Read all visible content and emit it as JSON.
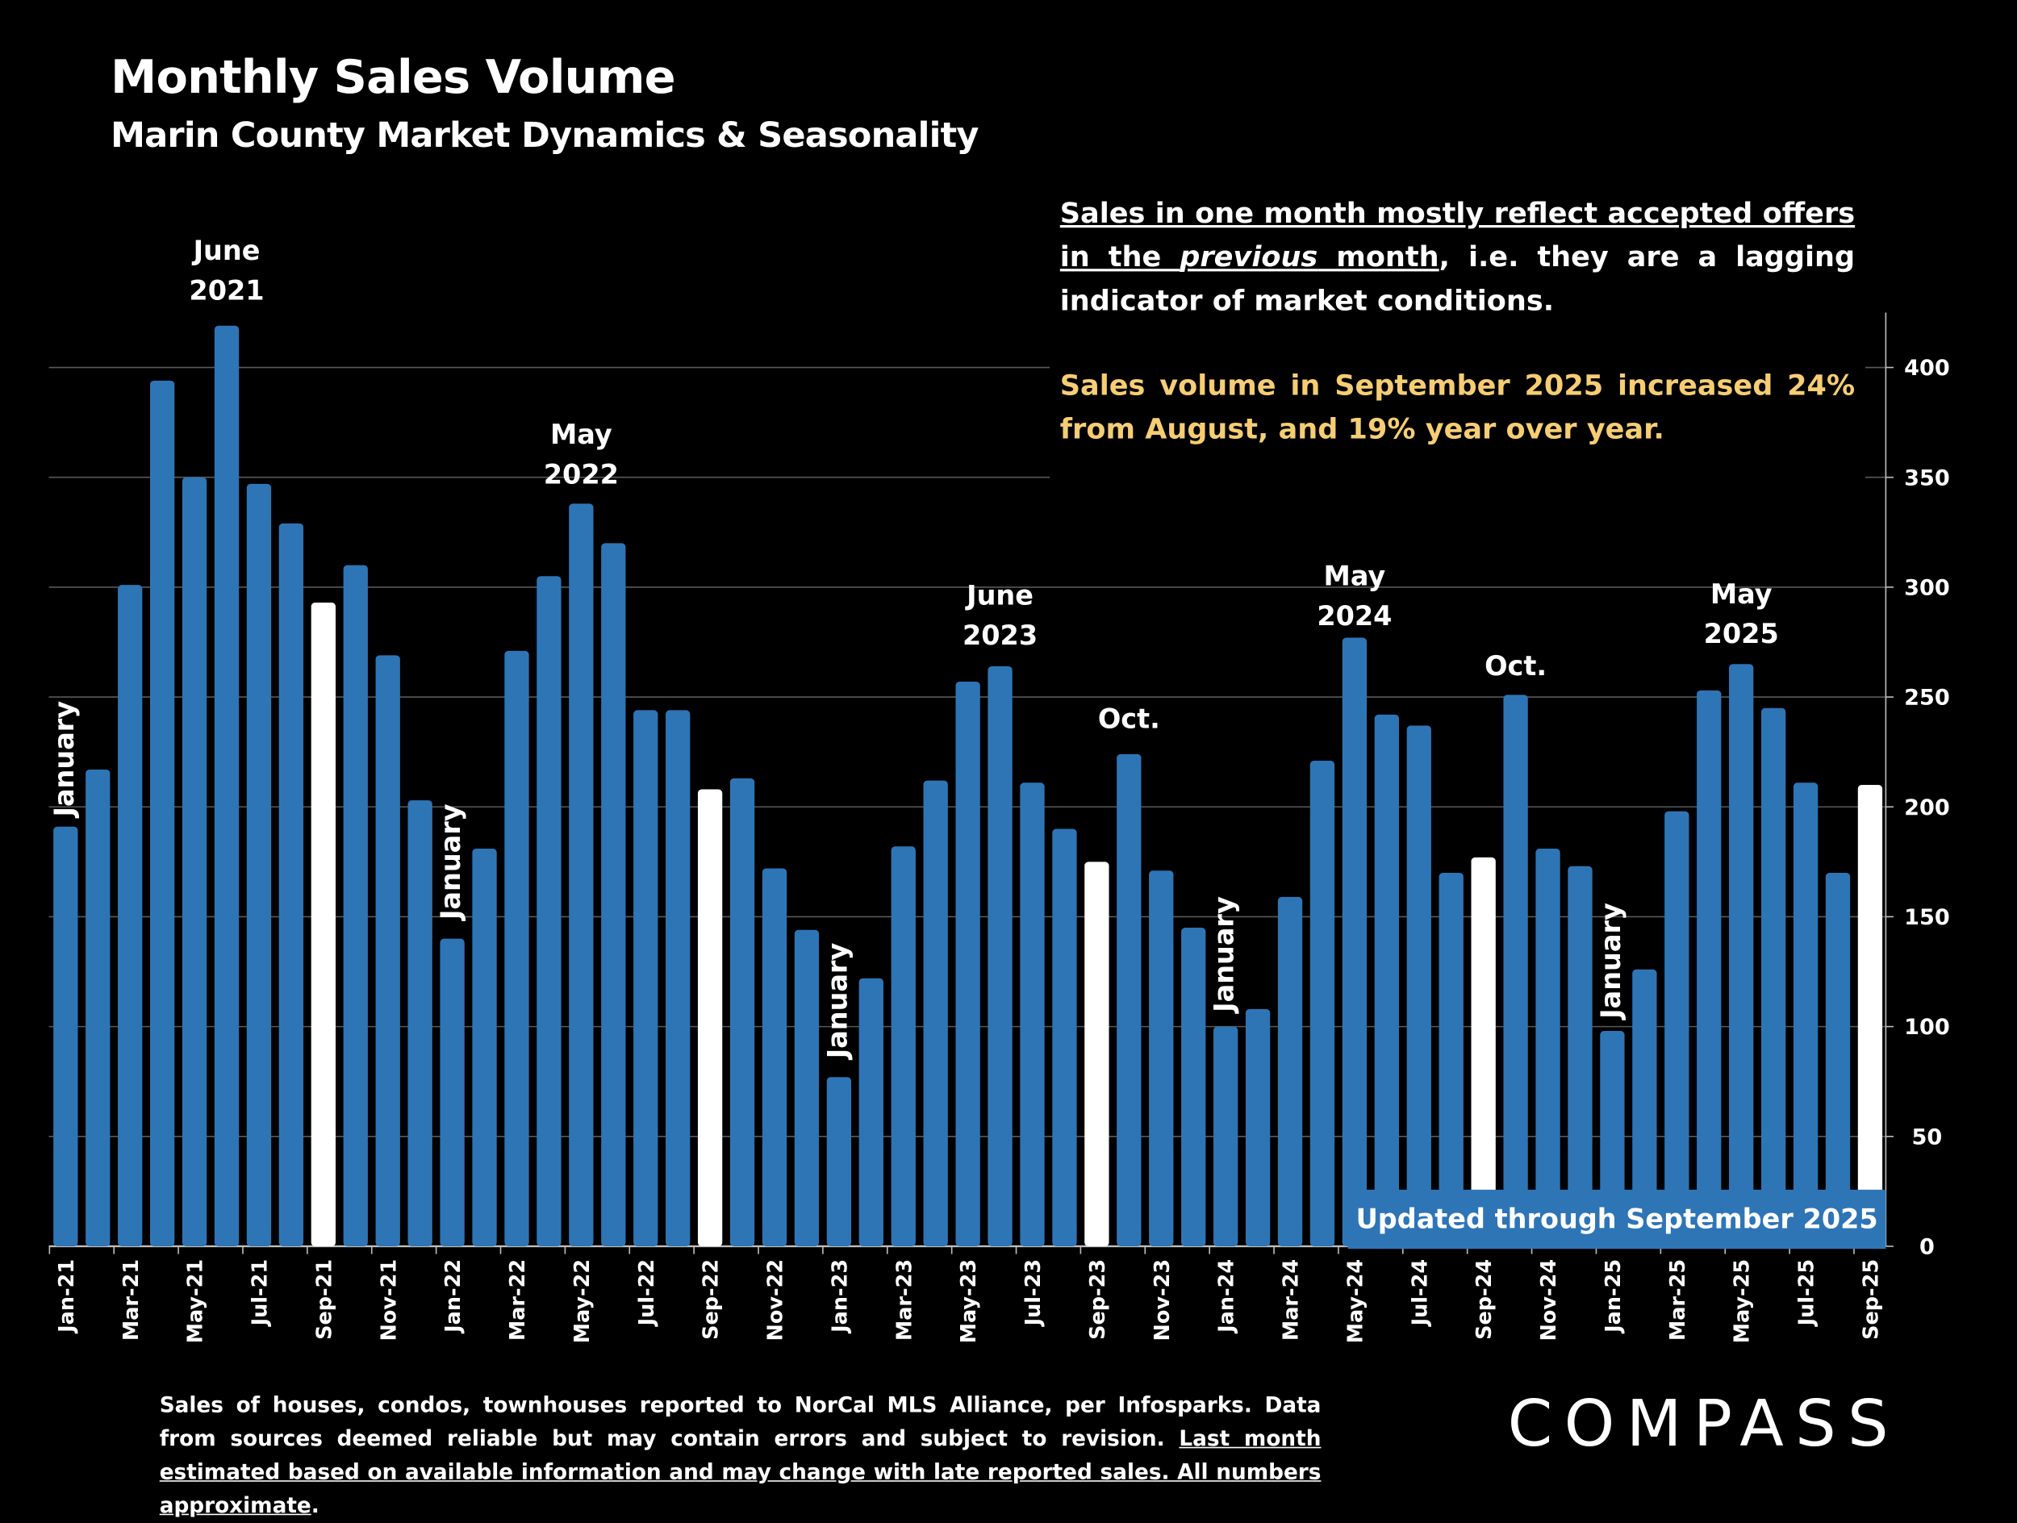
{
  "chart_data": {
    "type": "bar",
    "title": "Monthly Sales Volume",
    "subtitle": "Marin County Market Dynamics & Seasonality",
    "categories": [
      "Jan-21",
      null,
      "Mar-21",
      null,
      "May-21",
      null,
      "Jul-21",
      null,
      "Sep-21",
      null,
      "Nov-21",
      null,
      "Jan-22",
      null,
      "Mar-22",
      null,
      "May-22",
      null,
      "Jul-22",
      null,
      "Sep-22",
      null,
      "Nov-22",
      null,
      "Jan-23",
      null,
      "Mar-23",
      null,
      "May-23",
      null,
      "Jul-23",
      null,
      "Sep-23",
      null,
      "Nov-23",
      null,
      "Jan-24",
      null,
      "Mar-24",
      null,
      "May-24",
      null,
      "Jul-24",
      null,
      "Sep-24",
      null,
      "Nov-24",
      null,
      "Jan-25",
      null,
      "Mar-25",
      null,
      "May-25",
      null,
      "Jul-25",
      null,
      "Sep-25"
    ],
    "values": [
      191,
      217,
      301,
      394,
      350,
      419,
      347,
      329,
      293,
      310,
      269,
      203,
      140,
      181,
      271,
      305,
      338,
      320,
      244,
      244,
      208,
      213,
      172,
      144,
      77,
      122,
      182,
      212,
      257,
      264,
      211,
      190,
      175,
      224,
      171,
      145,
      100,
      108,
      159,
      221,
      277,
      242,
      237,
      170,
      177,
      251,
      181,
      173,
      98,
      126,
      198,
      253,
      265,
      245,
      211,
      170,
      210
    ],
    "bar_colors": [
      "#2e75b6",
      "#2e75b6",
      "#2e75b6",
      "#2e75b6",
      "#2e75b6",
      "#2e75b6",
      "#2e75b6",
      "#2e75b6",
      "#ffffff",
      "#2e75b6",
      "#2e75b6",
      "#2e75b6",
      "#2e75b6",
      "#2e75b6",
      "#2e75b6",
      "#2e75b6",
      "#2e75b6",
      "#2e75b6",
      "#2e75b6",
      "#2e75b6",
      "#ffffff",
      "#2e75b6",
      "#2e75b6",
      "#2e75b6",
      "#2e75b6",
      "#2e75b6",
      "#2e75b6",
      "#2e75b6",
      "#2e75b6",
      "#2e75b6",
      "#2e75b6",
      "#2e75b6",
      "#ffffff",
      "#2e75b6",
      "#2e75b6",
      "#2e75b6",
      "#2e75b6",
      "#2e75b6",
      "#2e75b6",
      "#2e75b6",
      "#2e75b6",
      "#2e75b6",
      "#2e75b6",
      "#2e75b6",
      "#ffffff",
      "#2e75b6",
      "#2e75b6",
      "#2e75b6",
      "#2e75b6",
      "#2e75b6",
      "#2e75b6",
      "#2e75b6",
      "#2e75b6",
      "#2e75b6",
      "#2e75b6",
      "#2e75b6",
      "#ffffff"
    ],
    "ylim": [
      0,
      425
    ],
    "yticks": [
      0,
      50,
      100,
      150,
      200,
      250,
      300,
      350,
      400
    ],
    "y_axis_side": "right",
    "grid": true,
    "annotations": [
      [
        "January"
      ],
      [
        "June",
        "2021"
      ],
      [
        "January"
      ],
      [
        "May",
        "2022"
      ],
      [
        "January"
      ],
      [
        "June",
        "2023"
      ],
      [
        "Oct."
      ],
      [
        "January"
      ],
      [
        "May",
        "2024"
      ],
      [
        "Oct."
      ],
      [
        "January"
      ],
      [
        "May",
        "2025"
      ]
    ],
    "note": {
      "paragraph_1": [
        "Sales in one month mostly reflect accepted offers in the ",
        "previous",
        " month",
        ", i.e. they are a lagging indicator of market conditions."
      ],
      "paragraph_2": "Sales volume in September 2025 increased 24% from August, and 19% year over year."
    },
    "badge": "Updated through September 2025",
    "footnote": [
      "Sales of houses, condos, townhouses reported to NorCal MLS Alliance, per Infosparks. Data from sources deemed reliable but may contain errors and subject to revision. ",
      "Last month estimated based on available information and may change with late reported sales. All numbers approximate",
      "."
    ],
    "logo": "COMPASS"
  }
}
